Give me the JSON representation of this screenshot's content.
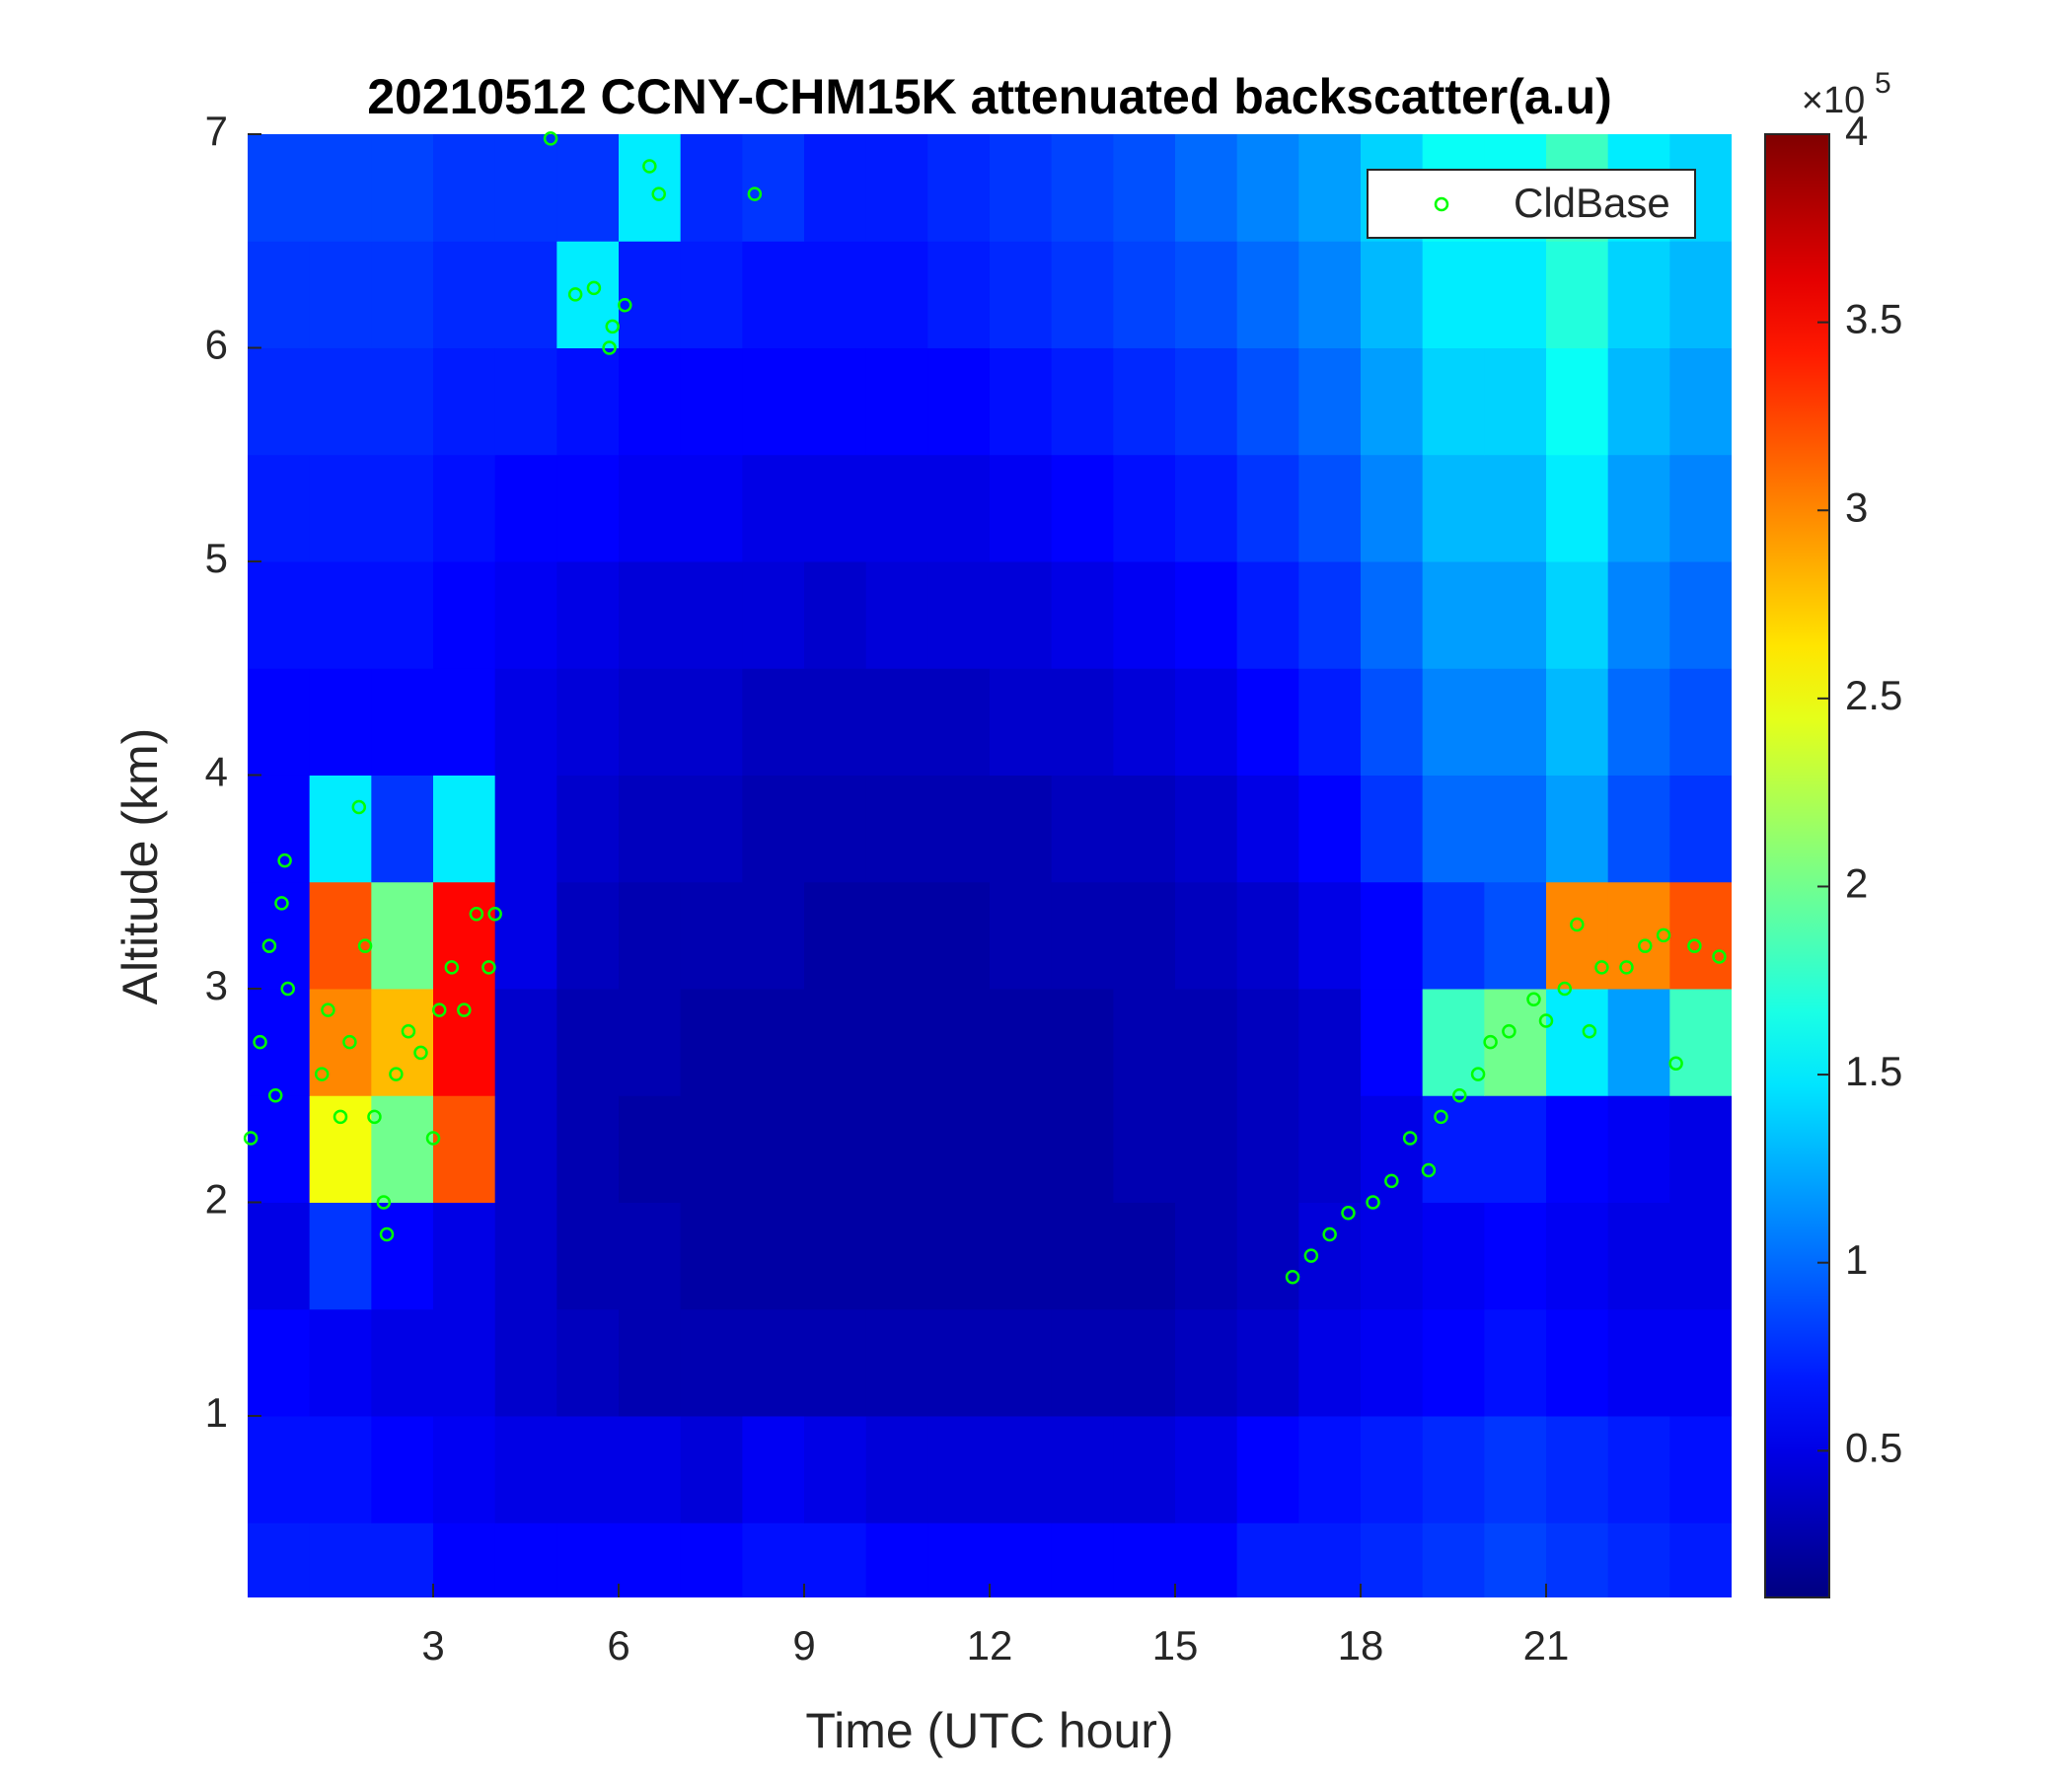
{
  "chart_data": {
    "type": "heatmap",
    "title": "20210512 CCNY-CHM15K attenuated backscatter(a.u)",
    "xlabel": "Time (UTC hour)",
    "ylabel": "Altitude (km)",
    "xlim": [
      0,
      24
    ],
    "ylim": [
      0.15,
      7
    ],
    "xticks": [
      3,
      6,
      9,
      12,
      15,
      18,
      21
    ],
    "yticks": [
      1,
      2,
      3,
      4,
      5,
      6,
      7
    ],
    "colormap": "jet",
    "clim": [
      0.11,
      4
    ],
    "cticks": [
      0.5,
      1,
      1.5,
      2,
      2.5,
      3,
      3.5,
      4
    ],
    "colorbar_multiplier": {
      "base": "×10",
      "exponent": "5"
    },
    "x": [
      0.5,
      1.5,
      2.5,
      3.5,
      4.5,
      5.5,
      6.5,
      7.5,
      8.5,
      9.5,
      10.5,
      11.5,
      12.5,
      13.5,
      14.5,
      15.5,
      16.5,
      17.5,
      18.5,
      19.5,
      20.5,
      21.5,
      22.5,
      23.5
    ],
    "y": [
      0.25,
      0.75,
      1.25,
      1.75,
      2.25,
      2.75,
      3.25,
      3.75,
      4.25,
      4.75,
      5.25,
      5.75,
      6.25,
      6.75
    ],
    "z": [
      [
        0.7,
        0.7,
        0.7,
        0.6,
        0.6,
        0.6,
        0.6,
        0.6,
        0.65,
        0.65,
        0.6,
        0.6,
        0.6,
        0.6,
        0.6,
        0.6,
        0.7,
        0.7,
        0.75,
        0.8,
        0.85,
        0.8,
        0.75,
        0.7
      ],
      [
        0.65,
        0.65,
        0.6,
        0.55,
        0.5,
        0.5,
        0.5,
        0.45,
        0.55,
        0.5,
        0.45,
        0.45,
        0.45,
        0.45,
        0.45,
        0.5,
        0.6,
        0.65,
        0.7,
        0.75,
        0.8,
        0.75,
        0.7,
        0.65
      ],
      [
        0.6,
        0.55,
        0.5,
        0.5,
        0.4,
        0.35,
        0.3,
        0.3,
        0.3,
        0.3,
        0.3,
        0.3,
        0.3,
        0.3,
        0.3,
        0.35,
        0.4,
        0.5,
        0.55,
        0.6,
        0.65,
        0.6,
        0.55,
        0.55
      ],
      [
        0.5,
        0.8,
        0.6,
        0.5,
        0.4,
        0.3,
        0.3,
        0.25,
        0.25,
        0.25,
        0.25,
        0.25,
        0.25,
        0.25,
        0.25,
        0.3,
        0.35,
        0.45,
        0.5,
        0.55,
        0.6,
        0.55,
        0.5,
        0.5
      ],
      [
        0.6,
        2.5,
        2.0,
        3.2,
        0.4,
        0.3,
        0.25,
        0.25,
        0.25,
        0.25,
        0.25,
        0.25,
        0.25,
        0.25,
        0.3,
        0.3,
        0.35,
        0.4,
        0.5,
        0.7,
        0.7,
        0.6,
        0.55,
        0.5
      ],
      [
        0.6,
        3.0,
        2.8,
        3.5,
        0.4,
        0.3,
        0.3,
        0.25,
        0.25,
        0.25,
        0.25,
        0.25,
        0.25,
        0.25,
        0.3,
        0.3,
        0.35,
        0.4,
        0.6,
        1.8,
        2.0,
        1.5,
        1.2,
        1.8
      ],
      [
        0.6,
        3.2,
        2.0,
        3.5,
        0.5,
        0.35,
        0.3,
        0.3,
        0.3,
        0.25,
        0.25,
        0.25,
        0.3,
        0.3,
        0.3,
        0.35,
        0.4,
        0.5,
        0.6,
        0.8,
        0.9,
        3.0,
        3.0,
        3.2
      ],
      [
        0.6,
        1.5,
        0.8,
        1.5,
        0.5,
        0.4,
        0.35,
        0.35,
        0.3,
        0.3,
        0.3,
        0.3,
        0.3,
        0.35,
        0.35,
        0.4,
        0.5,
        0.6,
        0.8,
        1.0,
        1.0,
        1.2,
        0.9,
        0.8
      ],
      [
        0.6,
        0.6,
        0.6,
        0.6,
        0.5,
        0.45,
        0.4,
        0.4,
        0.35,
        0.35,
        0.35,
        0.35,
        0.4,
        0.4,
        0.45,
        0.5,
        0.6,
        0.7,
        0.9,
        1.1,
        1.1,
        1.3,
        1.0,
        0.9
      ],
      [
        0.65,
        0.65,
        0.65,
        0.6,
        0.55,
        0.5,
        0.45,
        0.45,
        0.45,
        0.4,
        0.45,
        0.45,
        0.45,
        0.5,
        0.55,
        0.6,
        0.7,
        0.8,
        1.0,
        1.2,
        1.2,
        1.4,
        1.1,
        1.0
      ],
      [
        0.7,
        0.7,
        0.7,
        0.65,
        0.6,
        0.6,
        0.55,
        0.55,
        0.5,
        0.5,
        0.5,
        0.5,
        0.55,
        0.6,
        0.65,
        0.7,
        0.8,
        0.9,
        1.1,
        1.3,
        1.3,
        1.5,
        1.2,
        1.1
      ],
      [
        0.75,
        0.75,
        0.75,
        0.7,
        0.7,
        0.65,
        0.6,
        0.6,
        0.6,
        0.6,
        0.6,
        0.6,
        0.65,
        0.7,
        0.75,
        0.8,
        0.9,
        1.0,
        1.2,
        1.4,
        1.4,
        1.6,
        1.3,
        1.2
      ],
      [
        0.8,
        0.8,
        0.8,
        0.75,
        0.75,
        1.5,
        0.7,
        0.7,
        0.65,
        0.65,
        0.65,
        0.7,
        0.75,
        0.8,
        0.85,
        0.9,
        1.0,
        1.1,
        1.3,
        1.5,
        1.5,
        1.7,
        1.4,
        1.3
      ],
      [
        0.85,
        0.85,
        0.85,
        0.8,
        0.8,
        0.8,
        1.5,
        0.75,
        0.8,
        0.7,
        0.7,
        0.75,
        0.8,
        0.85,
        0.9,
        1.0,
        1.1,
        1.2,
        1.4,
        1.6,
        1.6,
        1.8,
        1.5,
        1.4
      ]
    ],
    "series": [
      {
        "name": "CldBase",
        "type": "scatter",
        "color": "#00ff00",
        "x": [
          0.05,
          0.2,
          0.35,
          0.45,
          0.55,
          0.6,
          0.65,
          1.2,
          1.3,
          1.5,
          1.65,
          1.8,
          1.9,
          2.05,
          2.2,
          2.25,
          2.4,
          2.6,
          2.8,
          3.0,
          3.1,
          3.3,
          3.5,
          3.7,
          3.9,
          4.0,
          4.9,
          5.3,
          5.6,
          5.85,
          5.9,
          6.1,
          6.5,
          6.65,
          8.2,
          16.9,
          17.2,
          17.5,
          17.8,
          18.2,
          18.5,
          18.8,
          19.1,
          19.3,
          19.6,
          19.9,
          20.1,
          20.4,
          20.8,
          21.0,
          21.3,
          21.5,
          21.7,
          21.9,
          22.3,
          22.6,
          22.9,
          23.1,
          23.4,
          23.8
        ],
        "values": [
          2.3,
          2.75,
          3.2,
          2.5,
          3.4,
          3.6,
          3.0,
          2.6,
          2.9,
          2.4,
          2.75,
          3.85,
          3.2,
          2.4,
          2.0,
          1.85,
          2.6,
          2.8,
          2.7,
          2.3,
          2.9,
          3.1,
          2.9,
          3.35,
          3.1,
          3.35,
          6.98,
          6.25,
          6.28,
          6.0,
          6.1,
          6.2,
          6.85,
          6.72,
          6.72,
          1.65,
          1.75,
          1.85,
          1.95,
          2.0,
          2.1,
          2.3,
          2.15,
          2.4,
          2.5,
          2.6,
          2.75,
          2.8,
          2.95,
          2.85,
          3.0,
          3.3,
          2.8,
          3.1,
          3.1,
          3.2,
          3.25,
          2.65,
          3.2,
          3.15
        ]
      }
    ],
    "legend": "upper right"
  }
}
